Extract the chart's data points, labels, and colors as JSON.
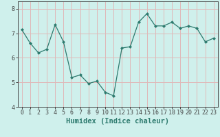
{
  "x": [
    0,
    1,
    2,
    3,
    4,
    5,
    6,
    7,
    8,
    9,
    10,
    11,
    12,
    13,
    14,
    15,
    16,
    17,
    18,
    19,
    20,
    21,
    22,
    23
  ],
  "y": [
    7.15,
    6.6,
    6.2,
    6.35,
    7.35,
    6.65,
    5.2,
    5.3,
    4.95,
    5.05,
    4.6,
    4.45,
    6.4,
    6.45,
    7.45,
    7.8,
    7.3,
    7.3,
    7.45,
    7.2,
    7.3,
    7.2,
    6.65,
    6.8
  ],
  "line_color": "#2d7a6e",
  "marker": "D",
  "marker_size": 2,
  "bg_color": "#cff0ec",
  "grid_color": "#e0b8b8",
  "xlabel": "Humidex (Indice chaleur)",
  "xlim": [
    -0.5,
    23.5
  ],
  "ylim": [
    4.0,
    8.3
  ],
  "yticks": [
    4,
    5,
    6,
    7,
    8
  ],
  "xticks": [
    0,
    1,
    2,
    3,
    4,
    5,
    6,
    7,
    8,
    9,
    10,
    11,
    12,
    13,
    14,
    15,
    16,
    17,
    18,
    19,
    20,
    21,
    22,
    23
  ],
  "axis_color": "#444444",
  "tick_fontsize": 6,
  "label_fontsize": 7.5
}
